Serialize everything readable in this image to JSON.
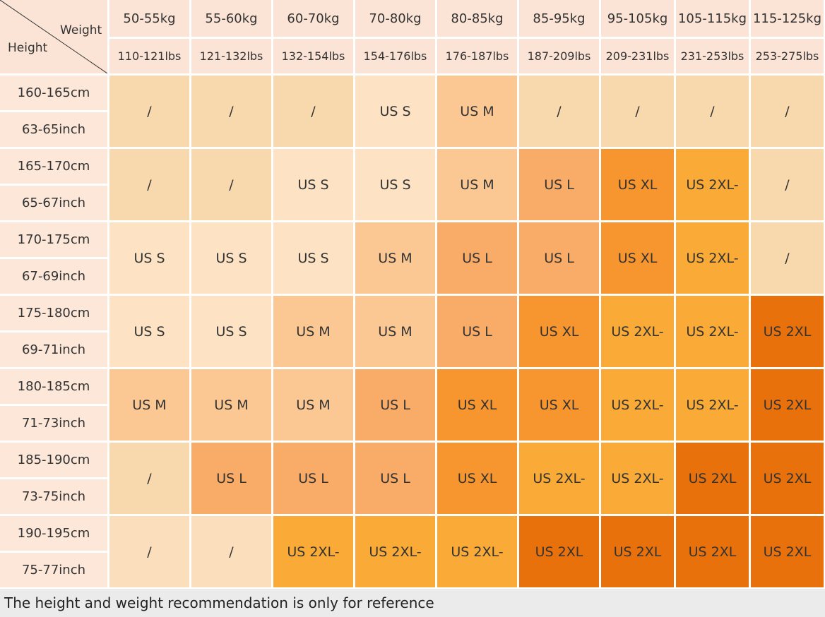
{
  "header": {
    "weight_label": "Weight",
    "height_label": "Height",
    "columns": [
      {
        "kg": "50-55kg",
        "lbs": "110-121lbs"
      },
      {
        "kg": "55-60kg",
        "lbs": "121-132lbs"
      },
      {
        "kg": "60-70kg",
        "lbs": "132-154lbs"
      },
      {
        "kg": "70-80kg",
        "lbs": "154-176lbs"
      },
      {
        "kg": "80-85kg",
        "lbs": "176-187lbs"
      },
      {
        "kg": "85-95kg",
        "lbs": "187-209lbs"
      },
      {
        "kg": "95-105kg",
        "lbs": "209-231lbs"
      },
      {
        "kg": "105-115kg",
        "lbs": "231-253lbs"
      },
      {
        "kg": "115-125kg",
        "lbs": "253-275lbs"
      }
    ]
  },
  "rows": [
    {
      "cm": "160-165cm",
      "inch": "63-65inch",
      "cells": [
        {
          "text": "/",
          "color": "#f8d9ae"
        },
        {
          "text": "/",
          "color": "#f8d9ae"
        },
        {
          "text": "/",
          "color": "#f8d9ae"
        },
        {
          "text": "US S",
          "color": "#fde3c4"
        },
        {
          "text": "US M",
          "color": "#fbc894"
        },
        {
          "text": "/",
          "color": "#f8d9ae"
        },
        {
          "text": "/",
          "color": "#f8d9ae"
        },
        {
          "text": "/",
          "color": "#f8d9ae"
        },
        {
          "text": "/",
          "color": "#f8d9ae"
        }
      ]
    },
    {
      "cm": "165-170cm",
      "inch": "65-67inch",
      "cells": [
        {
          "text": "/",
          "color": "#f8d9ae"
        },
        {
          "text": "/",
          "color": "#f8d9ae"
        },
        {
          "text": "US S",
          "color": "#fde3c4"
        },
        {
          "text": "US S",
          "color": "#fde3c4"
        },
        {
          "text": "US M",
          "color": "#fbc894"
        },
        {
          "text": "US L",
          "color": "#f9ab68"
        },
        {
          "text": "US XL",
          "color": "#f7962f"
        },
        {
          "text": "US 2XL-",
          "color": "#f9aa37"
        },
        {
          "text": "/",
          "color": "#f8d9ae"
        }
      ]
    },
    {
      "cm": "170-175cm",
      "inch": "67-69inch",
      "cells": [
        {
          "text": "US S",
          "color": "#fde3c4"
        },
        {
          "text": "US S",
          "color": "#fde3c4"
        },
        {
          "text": "US S",
          "color": "#fde3c4"
        },
        {
          "text": "US M",
          "color": "#fbc894"
        },
        {
          "text": "US L",
          "color": "#f9ab68"
        },
        {
          "text": "US L",
          "color": "#f9ab68"
        },
        {
          "text": "US XL",
          "color": "#f7962f"
        },
        {
          "text": "US 2XL-",
          "color": "#f9aa37"
        },
        {
          "text": "/",
          "color": "#f8d9ae"
        }
      ]
    },
    {
      "cm": "175-180cm",
      "inch": "69-71inch",
      "cells": [
        {
          "text": "US S",
          "color": "#fde3c4"
        },
        {
          "text": "US S",
          "color": "#fde3c4"
        },
        {
          "text": "US M",
          "color": "#fbc894"
        },
        {
          "text": "US M",
          "color": "#fbc894"
        },
        {
          "text": "US L",
          "color": "#f9ab68"
        },
        {
          "text": "US XL",
          "color": "#f7962f"
        },
        {
          "text": "US 2XL-",
          "color": "#f9aa37"
        },
        {
          "text": "US 2XL-",
          "color": "#f9aa37"
        },
        {
          "text": "US 2XL",
          "color": "#e8710b"
        }
      ]
    },
    {
      "cm": "180-185cm",
      "inch": "71-73inch",
      "cells": [
        {
          "text": "US M",
          "color": "#fbc894"
        },
        {
          "text": "US M",
          "color": "#fbc894"
        },
        {
          "text": "US M",
          "color": "#fbc894"
        },
        {
          "text": "US L",
          "color": "#f9ab68"
        },
        {
          "text": "US XL",
          "color": "#f7962f"
        },
        {
          "text": "US XL",
          "color": "#f7962f"
        },
        {
          "text": "US 2XL-",
          "color": "#f9aa37"
        },
        {
          "text": "US 2XL-",
          "color": "#f9aa37"
        },
        {
          "text": "US 2XL",
          "color": "#e8710b"
        }
      ]
    },
    {
      "cm": "185-190cm",
      "inch": "73-75inch",
      "cells": [
        {
          "text": "/",
          "color": "#f8d9ae"
        },
        {
          "text": "US L",
          "color": "#f9ab68"
        },
        {
          "text": "US L",
          "color": "#f9ab68"
        },
        {
          "text": "US L",
          "color": "#f9ab68"
        },
        {
          "text": "US XL",
          "color": "#f7962f"
        },
        {
          "text": "US 2XL-",
          "color": "#f9aa37"
        },
        {
          "text": "US 2XL-",
          "color": "#f9aa37"
        },
        {
          "text": "US 2XL",
          "color": "#e8710b"
        },
        {
          "text": "US 2XL",
          "color": "#e8710b"
        }
      ]
    },
    {
      "cm": "190-195cm",
      "inch": "75-77inch",
      "cells": [
        {
          "text": "/",
          "color": "#fbdfbd"
        },
        {
          "text": "/",
          "color": "#fbdfbd"
        },
        {
          "text": "US 2XL-",
          "color": "#f9aa37"
        },
        {
          "text": "US 2XL-",
          "color": "#f9aa37"
        },
        {
          "text": "US 2XL-",
          "color": "#f9aa37"
        },
        {
          "text": "US 2XL",
          "color": "#e8710b"
        },
        {
          "text": "US 2XL",
          "color": "#e8710b"
        },
        {
          "text": "US 2XL",
          "color": "#e8710b"
        },
        {
          "text": "US 2XL",
          "color": "#e8710b"
        }
      ]
    }
  ],
  "footer": "The height and weight recommendation is only for reference"
}
